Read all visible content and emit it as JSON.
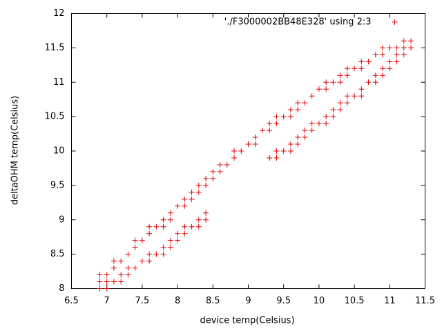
{
  "chart_data": {
    "type": "scatter",
    "xlabel": "device temp(Celsius)",
    "ylabel": "deltaOHM temp(Celsius)",
    "legend": "top right",
    "marker": "+",
    "grid": false,
    "xlim": [
      6.5,
      11.5
    ],
    "xticks": [
      6.5,
      7,
      7.5,
      8,
      8.5,
      9,
      9.5,
      10,
      10.5,
      11,
      11.5
    ],
    "ylim": [
      8,
      12
    ],
    "yticks": [
      8,
      8.5,
      9,
      9.5,
      10,
      10.5,
      11,
      11.5,
      12
    ],
    "series": [
      {
        "name": "'./F3000002BB48E328' using 2:3",
        "color": "#e00000",
        "x": [
          6.9,
          7.0,
          6.9,
          7.0,
          7.1,
          7.2,
          6.9,
          7.0,
          7.1,
          7.1,
          7.2,
          7.2,
          7.3,
          7.3,
          7.4,
          7.3,
          7.4,
          7.4,
          7.5,
          7.5,
          7.6,
          7.6,
          7.7,
          7.8,
          7.6,
          7.6,
          7.7,
          7.8,
          7.8,
          7.9,
          7.8,
          7.9,
          7.9,
          8.0,
          7.9,
          8.0,
          8.1,
          8.0,
          8.1,
          8.1,
          8.2,
          8.3,
          8.1,
          8.2,
          8.2,
          8.3,
          8.4,
          8.3,
          8.3,
          8.4,
          8.4,
          8.4,
          8.5,
          8.5,
          8.6,
          8.6,
          8.7,
          8.8,
          8.8,
          8.9,
          9.0,
          9.1,
          9.1,
          9.2,
          9.3,
          9.3,
          9.4,
          9.4,
          9.5,
          9.6,
          9.3,
          9.4,
          9.4,
          9.5,
          9.6,
          9.6,
          9.7,
          9.7,
          9.8,
          9.8,
          9.9,
          9.6,
          9.7,
          9.7,
          9.8,
          9.9,
          9.9,
          10.0,
          10.1,
          10.0,
          10.1,
          10.1,
          10.2,
          10.3,
          10.1,
          10.2,
          10.2,
          10.3,
          10.3,
          10.4,
          10.3,
          10.4,
          10.4,
          10.5,
          10.6,
          10.4,
          10.5,
          10.6,
          10.6,
          10.6,
          10.7,
          10.7,
          10.8,
          10.8,
          10.8,
          10.9,
          10.9,
          11.0,
          10.9,
          10.9,
          11.0,
          11.1,
          11.0,
          11.1,
          11.1,
          11.2,
          11.2,
          11.3,
          11.2,
          11.3
        ],
        "y": [
          8.2,
          8.2,
          8.1,
          8.1,
          8.1,
          8.1,
          8.0,
          8.0,
          8.3,
          8.4,
          8.4,
          8.2,
          8.2,
          8.3,
          8.3,
          8.5,
          8.6,
          8.7,
          8.7,
          8.4,
          8.4,
          8.5,
          8.5,
          8.5,
          8.8,
          8.9,
          8.9,
          8.9,
          8.6,
          8.6,
          9.0,
          9.0,
          8.7,
          8.7,
          9.1,
          8.8,
          8.8,
          9.2,
          9.2,
          8.9,
          8.9,
          8.9,
          9.3,
          9.3,
          9.4,
          9.5,
          9.5,
          9.4,
          9.0,
          9.0,
          9.1,
          9.6,
          9.6,
          9.7,
          9.7,
          9.8,
          9.8,
          9.9,
          10.0,
          10.0,
          10.1,
          10.1,
          10.2,
          10.3,
          10.3,
          10.4,
          10.4,
          10.5,
          10.5,
          10.5,
          9.9,
          9.9,
          10.0,
          10.0,
          10.0,
          10.1,
          10.1,
          10.2,
          10.2,
          10.3,
          10.3,
          10.6,
          10.6,
          10.7,
          10.7,
          10.8,
          10.4,
          10.4,
          10.4,
          10.9,
          10.9,
          11.0,
          11.0,
          11.0,
          10.5,
          10.5,
          10.6,
          10.6,
          10.7,
          10.7,
          11.1,
          11.1,
          11.2,
          11.2,
          11.2,
          10.8,
          10.8,
          10.8,
          10.9,
          11.3,
          11.3,
          11.0,
          11.0,
          11.1,
          11.4,
          11.4,
          11.2,
          11.2,
          11.1,
          11.5,
          11.5,
          11.5,
          11.3,
          11.3,
          11.4,
          11.4,
          11.5,
          11.5,
          11.6,
          11.6
        ]
      }
    ]
  }
}
